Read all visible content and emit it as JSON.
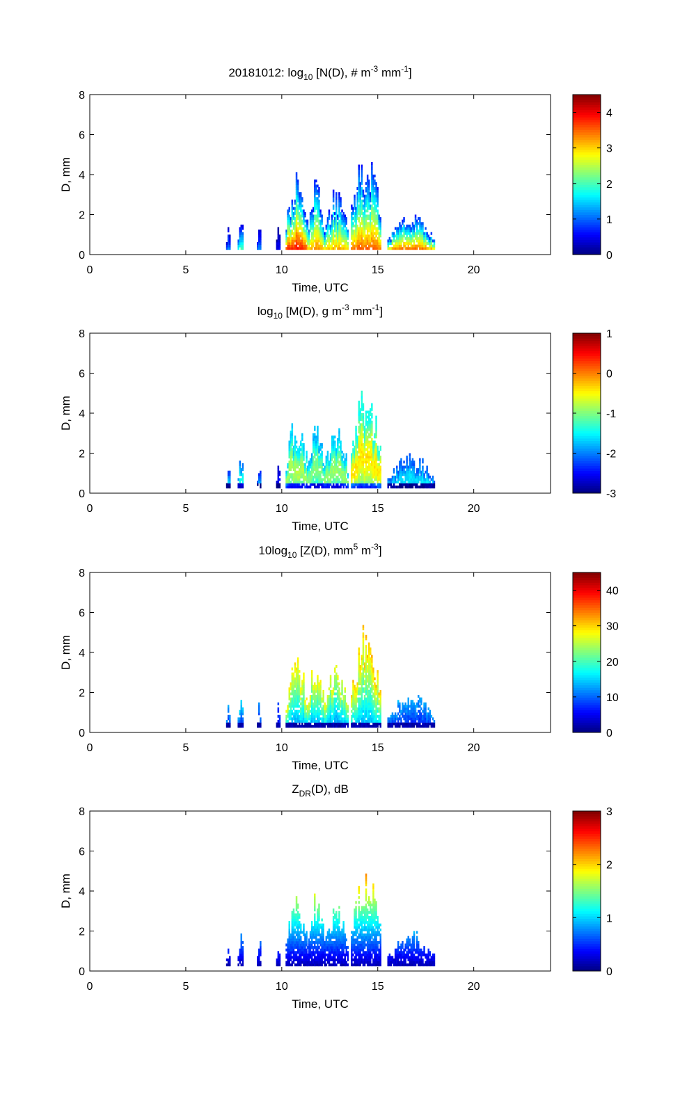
{
  "figure": {
    "date": "20181012"
  },
  "chart_data": [
    {
      "type": "heatmap",
      "title": {
        "parts": [
          {
            "t": "20181012: log"
          },
          {
            "t": "10",
            "sub": true
          },
          {
            "t": " [N(D), # m"
          },
          {
            "t": "-3",
            "sup": true
          },
          {
            "t": " mm"
          },
          {
            "t": "-1",
            "sup": true
          },
          {
            "t": "]"
          }
        ]
      },
      "xlabel": "Time, UTC",
      "ylabel": "D, mm",
      "xlim": [
        0,
        24
      ],
      "ylim": [
        0,
        8
      ],
      "xticks": [
        0,
        5,
        10,
        15,
        20
      ],
      "yticks": [
        0,
        2,
        4,
        6,
        8
      ],
      "clim": [
        0,
        4.5
      ],
      "cticks": [
        0,
        1,
        2,
        3,
        4
      ],
      "colormap": "jet",
      "bursts": [
        {
          "t0": 7.1,
          "t1": 7.3,
          "peak": 1.5,
          "cval": 1.2
        },
        {
          "t0": 7.7,
          "t1": 8.0,
          "peak": 2.0,
          "cval": 2.2
        },
        {
          "t0": 8.7,
          "t1": 8.9,
          "peak": 1.7,
          "cval": 1.2
        },
        {
          "t0": 9.7,
          "t1": 9.9,
          "peak": 1.6,
          "cval": 0.5
        },
        {
          "t0": 10.2,
          "t1": 11.3,
          "peak": 4.1,
          "cval": 4.0
        },
        {
          "t0": 11.3,
          "t1": 12.2,
          "peak": 3.9,
          "cval": 3.4
        },
        {
          "t0": 12.2,
          "t1": 13.4,
          "peak": 3.4,
          "cval": 3.3
        },
        {
          "t0": 13.6,
          "t1": 15.1,
          "peak": 5.5,
          "cval": 3.6
        },
        {
          "t0": 15.5,
          "t1": 17.9,
          "peak": 2.0,
          "cval": 3.8
        }
      ]
    },
    {
      "type": "heatmap",
      "title": {
        "parts": [
          {
            "t": "log"
          },
          {
            "t": "10",
            "sub": true
          },
          {
            "t": " [M(D), g m"
          },
          {
            "t": "-3",
            "sup": true
          },
          {
            "t": " mm"
          },
          {
            "t": "-1",
            "sup": true
          },
          {
            "t": "]"
          }
        ]
      },
      "xlabel": "Time, UTC",
      "ylabel": "D, mm",
      "xlim": [
        0,
        24
      ],
      "ylim": [
        0,
        8
      ],
      "xticks": [
        0,
        5,
        10,
        15,
        20
      ],
      "yticks": [
        0,
        2,
        4,
        6,
        8
      ],
      "clim": [
        -3,
        1
      ],
      "cticks": [
        -3,
        -2,
        -1,
        0,
        1
      ],
      "colormap": "jet",
      "bursts": [
        {
          "t0": 7.1,
          "t1": 7.3,
          "peak": 1.5,
          "cval": -1.8
        },
        {
          "t0": 7.7,
          "t1": 8.0,
          "peak": 2.0,
          "cval": -1.5
        },
        {
          "t0": 8.7,
          "t1": 8.9,
          "peak": 1.7,
          "cval": -2.0
        },
        {
          "t0": 9.7,
          "t1": 9.9,
          "peak": 1.6,
          "cval": -2.6
        },
        {
          "t0": 10.2,
          "t1": 11.3,
          "peak": 4.1,
          "cval": -0.9
        },
        {
          "t0": 11.3,
          "t1": 12.2,
          "peak": 3.9,
          "cval": -1.1
        },
        {
          "t0": 12.2,
          "t1": 13.4,
          "peak": 3.4,
          "cval": -1.0
        },
        {
          "t0": 13.6,
          "t1": 15.1,
          "peak": 5.5,
          "cval": -0.5
        },
        {
          "t0": 15.5,
          "t1": 17.9,
          "peak": 2.0,
          "cval": -1.7
        }
      ]
    },
    {
      "type": "heatmap",
      "title": {
        "parts": [
          {
            "t": "10log"
          },
          {
            "t": "10",
            "sub": true
          },
          {
            "t": " [Z(D),  mm"
          },
          {
            "t": "5",
            "sup": true
          },
          {
            "t": " m"
          },
          {
            "t": "-3",
            "sup": true
          },
          {
            "t": "]"
          }
        ]
      },
      "xlabel": "Time, UTC",
      "ylabel": "D, mm",
      "xlim": [
        0,
        24
      ],
      "ylim": [
        0,
        8
      ],
      "xticks": [
        0,
        5,
        10,
        15,
        20
      ],
      "yticks": [
        0,
        2,
        4,
        6,
        8
      ],
      "clim": [
        0,
        45
      ],
      "cticks": [
        0,
        10,
        20,
        30,
        40
      ],
      "colormap": "jet",
      "bursts": [
        {
          "t0": 7.1,
          "t1": 7.3,
          "peak": 1.5,
          "cval": 12
        },
        {
          "t0": 7.7,
          "t1": 8.0,
          "peak": 2.0,
          "cval": 14
        },
        {
          "t0": 8.7,
          "t1": 8.9,
          "peak": 1.7,
          "cval": 12
        },
        {
          "t0": 9.7,
          "t1": 9.9,
          "peak": 1.6,
          "cval": 8
        },
        {
          "t0": 10.2,
          "t1": 11.3,
          "peak": 4.1,
          "cval": 28
        },
        {
          "t0": 11.3,
          "t1": 12.2,
          "peak": 3.9,
          "cval": 27
        },
        {
          "t0": 12.2,
          "t1": 13.4,
          "peak": 3.4,
          "cval": 26
        },
        {
          "t0": 13.6,
          "t1": 15.1,
          "peak": 5.5,
          "cval": 30
        },
        {
          "t0": 15.5,
          "t1": 17.9,
          "peak": 2.0,
          "cval": 12
        }
      ]
    },
    {
      "type": "heatmap",
      "title": {
        "parts": [
          {
            "t": "Z"
          },
          {
            "t": "DR",
            "sub": true
          },
          {
            "t": "(D), dB"
          }
        ]
      },
      "xlabel": "Time, UTC",
      "ylabel": "D, mm",
      "xlim": [
        0,
        24
      ],
      "ylim": [
        0,
        8
      ],
      "xticks": [
        0,
        5,
        10,
        15,
        20
      ],
      "yticks": [
        0,
        2,
        4,
        6,
        8
      ],
      "clim": [
        0,
        3
      ],
      "cticks": [
        0,
        1,
        2,
        3
      ],
      "colormap": "jet",
      "bursts": [
        {
          "t0": 7.1,
          "t1": 7.3,
          "peak": 1.5,
          "cval": 0.3
        },
        {
          "t0": 7.7,
          "t1": 8.0,
          "peak": 2.0,
          "cval": 0.3
        },
        {
          "t0": 8.7,
          "t1": 8.9,
          "peak": 1.7,
          "cval": 0.3
        },
        {
          "t0": 9.7,
          "t1": 9.9,
          "peak": 1.6,
          "cval": 0.2
        },
        {
          "t0": 10.2,
          "t1": 11.3,
          "peak": 4.1,
          "cval": 0.8
        },
        {
          "t0": 11.3,
          "t1": 12.2,
          "peak": 3.9,
          "cval": 0.7
        },
        {
          "t0": 12.2,
          "t1": 13.4,
          "peak": 3.4,
          "cval": 0.7
        },
        {
          "t0": 13.6,
          "t1": 15.1,
          "peak": 5.5,
          "cval": 0.9
        },
        {
          "t0": 15.5,
          "t1": 17.9,
          "peak": 2.0,
          "cval": 0.3
        }
      ]
    }
  ]
}
